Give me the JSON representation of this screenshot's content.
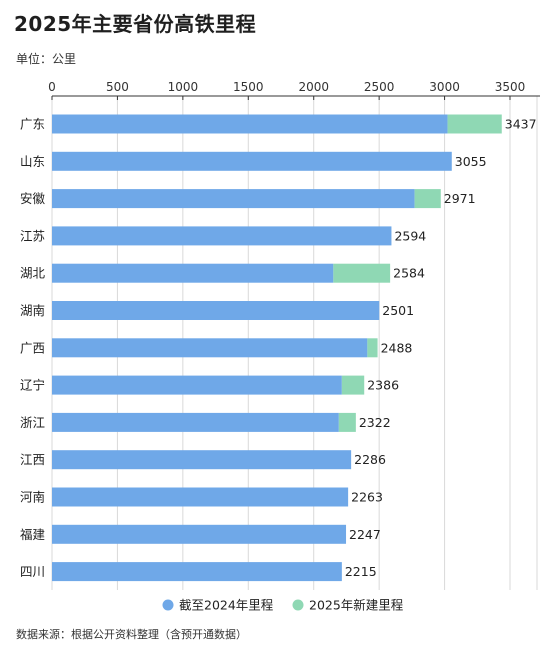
{
  "title": "2025年主要省份高铁里程",
  "unit_label": "单位：公里",
  "source": "数据来源：根据公开资料整理（含预开通数据）",
  "colors": {
    "base": "#6fa8e8",
    "new": "#8fd8b4",
    "axis": "#333333",
    "grid": "#d9d9d9"
  },
  "chart_data": {
    "type": "bar",
    "orientation": "horizontal",
    "stacked": true,
    "categories": [
      "广东",
      "山东",
      "安徽",
      "江苏",
      "湖北",
      "湖南",
      "广西",
      "辽宁",
      "浙江",
      "江西",
      "河南",
      "福建",
      "四川"
    ],
    "series": [
      {
        "name": "截至2024年里程",
        "color": "#6fa8e8",
        "values": [
          3023,
          3055,
          2771,
          2594,
          2150,
          2501,
          2410,
          2215,
          2192,
          2286,
          2263,
          2247,
          2215
        ]
      },
      {
        "name": "2025年新建里程",
        "color": "#8fd8b4",
        "values": [
          414,
          0,
          200,
          0,
          434,
          0,
          78,
          171,
          130,
          0,
          0,
          0,
          0
        ]
      }
    ],
    "totals": [
      "3437",
      "3055",
      "2971",
      "2594",
      "2584",
      "2501",
      "2488",
      "2386",
      "2322",
      "2286",
      "2263",
      "2247",
      "2215"
    ],
    "x_ticks": [
      0,
      500,
      1000,
      1500,
      2000,
      2500,
      3000,
      3500
    ],
    "xlim": [
      0,
      3500
    ],
    "x_axis_position": "top",
    "grid": true,
    "legend_position": "bottom-center"
  }
}
